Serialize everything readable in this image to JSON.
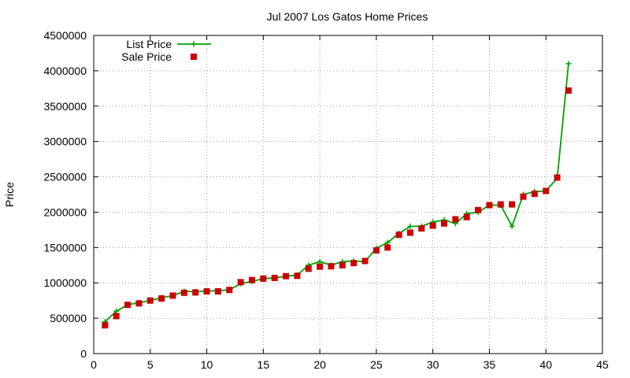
{
  "chart_data": {
    "type": "line",
    "title": "Jul 2007 Los Gatos Home Prices",
    "xlabel": "",
    "ylabel": "Price",
    "xlim": [
      0,
      45
    ],
    "ylim": [
      0,
      4500000
    ],
    "x_ticks": [
      0,
      5,
      10,
      15,
      20,
      25,
      30,
      35,
      40,
      45
    ],
    "y_ticks": [
      0,
      500000,
      1000000,
      1500000,
      2000000,
      2500000,
      3000000,
      3500000,
      4000000,
      4500000
    ],
    "x_tick_labels": [
      "0",
      "5",
      "10",
      "15",
      "20",
      "25",
      "30",
      "35",
      "40",
      "45"
    ],
    "y_tick_labels": [
      "0",
      "500000",
      "1000000",
      "1500000",
      "2000000",
      "2500000",
      "3000000",
      "3500000",
      "4000000",
      "4500000"
    ],
    "grid": true,
    "legend_position": "top-left",
    "x": [
      1,
      2,
      3,
      4,
      5,
      6,
      7,
      8,
      9,
      10,
      11,
      12,
      13,
      14,
      15,
      16,
      17,
      18,
      19,
      20,
      21,
      22,
      23,
      24,
      25,
      26,
      27,
      28,
      29,
      30,
      31,
      32,
      33,
      34,
      35,
      36,
      37,
      38,
      39,
      40,
      41,
      42
    ],
    "series": [
      {
        "name": "List Price",
        "style": "linespoints",
        "marker": "plus",
        "color": "#00a000",
        "values": [
          450000,
          600000,
          690000,
          720000,
          750000,
          790000,
          820000,
          880000,
          875000,
          885000,
          890000,
          900000,
          990000,
          1020000,
          1060000,
          1070000,
          1095000,
          1110000,
          1250000,
          1300000,
          1250000,
          1300000,
          1310000,
          1300000,
          1490000,
          1570000,
          1700000,
          1800000,
          1800000,
          1860000,
          1890000,
          1840000,
          1980000,
          2000000,
          2100000,
          2100000,
          1800000,
          2250000,
          2290000,
          2300000,
          2480000,
          4100000
        ]
      },
      {
        "name": "Sale Price",
        "style": "points",
        "marker": "square",
        "color": "#cc0000",
        "values": [
          400000,
          530000,
          690000,
          710000,
          750000,
          780000,
          820000,
          860000,
          865000,
          880000,
          880000,
          900000,
          1010000,
          1040000,
          1060000,
          1070000,
          1095000,
          1100000,
          1200000,
          1230000,
          1235000,
          1250000,
          1280000,
          1310000,
          1460000,
          1500000,
          1680000,
          1710000,
          1770000,
          1810000,
          1840000,
          1900000,
          1930000,
          2030000,
          2100000,
          2110000,
          2110000,
          2220000,
          2260000,
          2300000,
          2490000,
          3720000
        ]
      }
    ]
  }
}
